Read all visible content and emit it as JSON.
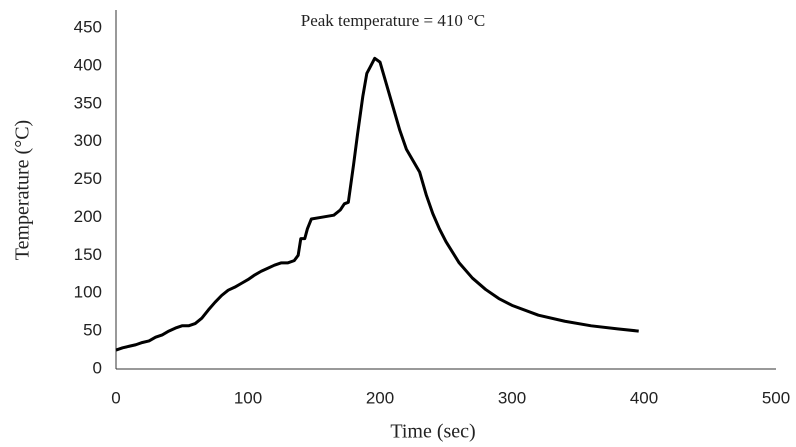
{
  "chart_data": {
    "type": "line",
    "annotation": "Peak temperature = 410 °C",
    "x_label": "Time (sec)",
    "y_label": "Temperature (°C)",
    "x": [
      0,
      5,
      10,
      15,
      20,
      25,
      30,
      35,
      40,
      45,
      50,
      55,
      60,
      65,
      70,
      75,
      80,
      85,
      90,
      95,
      100,
      105,
      110,
      115,
      120,
      125,
      130,
      135,
      138,
      140,
      143,
      145,
      148,
      155,
      165,
      170,
      173,
      176,
      180,
      183,
      187,
      190,
      193,
      196,
      200,
      205,
      210,
      215,
      220,
      225,
      230,
      235,
      240,
      245,
      250,
      260,
      270,
      280,
      290,
      300,
      320,
      340,
      360,
      380,
      396
    ],
    "series": [
      {
        "name": "Temperature",
        "color": "#000000",
        "values": [
          25,
          28,
          30,
          32,
          35,
          37,
          42,
          45,
          50,
          54,
          57,
          57,
          60,
          67,
          78,
          88,
          97,
          104,
          108,
          113,
          118,
          124,
          129,
          133,
          137,
          140,
          140,
          143,
          150,
          172,
          172,
          185,
          198,
          200,
          203,
          210,
          218,
          220,
          270,
          310,
          360,
          390,
          400,
          410,
          405,
          375,
          345,
          315,
          290,
          275,
          260,
          230,
          205,
          185,
          168,
          140,
          120,
          105,
          93,
          84,
          71,
          63,
          57,
          53,
          50
        ]
      }
    ],
    "xlim": [
      0,
      500
    ],
    "xticks": [
      0,
      100,
      200,
      300,
      400,
      500
    ],
    "ylim": [
      0,
      450
    ],
    "yticks": [
      0,
      50,
      100,
      150,
      200,
      250,
      300,
      350,
      400,
      450
    ],
    "grid": false
  }
}
